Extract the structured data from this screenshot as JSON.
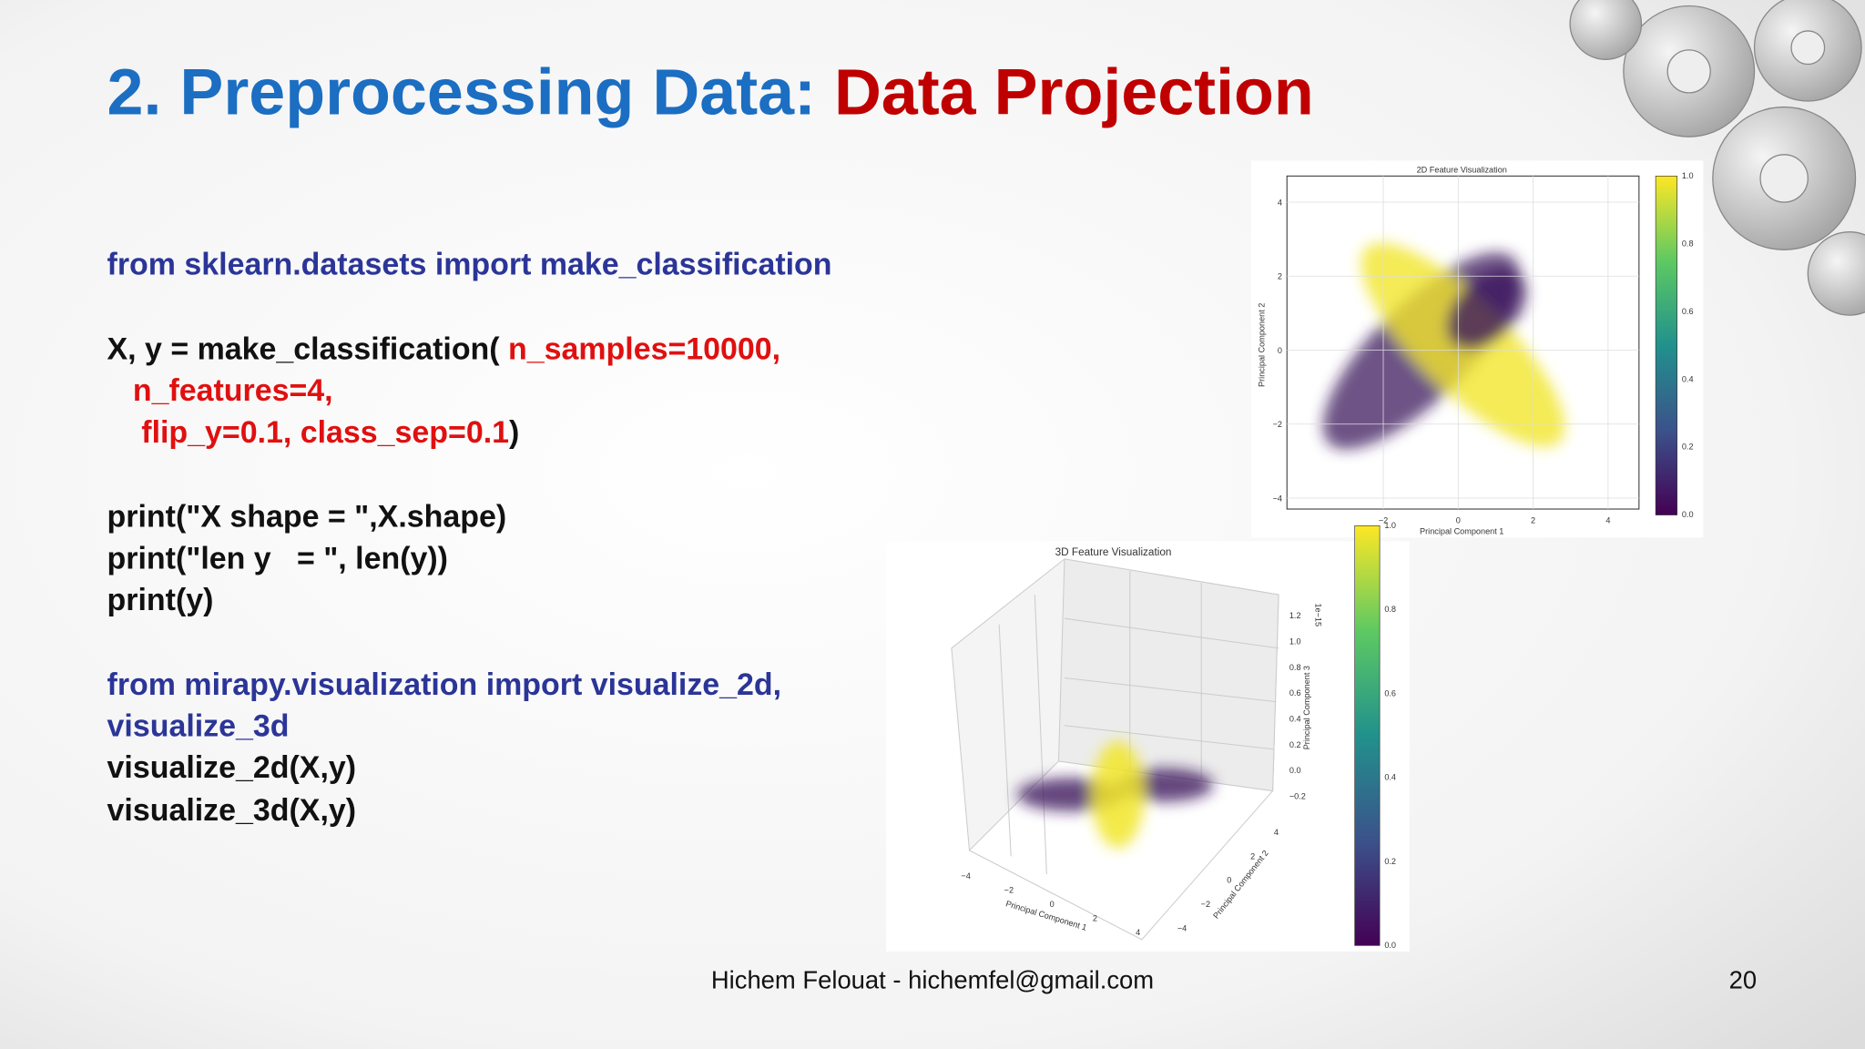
{
  "slide": {
    "title": [
      {
        "text": "2. Preprocessing Data: ",
        "color": "#1b6ec2"
      },
      {
        "text": "Data Projection",
        "color": "#c00000"
      }
    ],
    "code": [
      [
        {
          "text": "from sklearn.datasets import make_classification",
          "color": "#2b3598"
        }
      ],
      [
        {
          "text": "X, y = make_classification( ",
          "color": "#111111"
        },
        {
          "text": "n_samples=10000,",
          "color": "#e01010"
        }
      ],
      [
        {
          "text": "   n_features=4,",
          "color": "#e01010"
        }
      ],
      [
        {
          "text": "    flip_y=0.1, class_sep=0.1",
          "color": "#e01010"
        },
        {
          "text": ")",
          "color": "#111111"
        }
      ],
      [
        {
          "text": "print(\"X shape = \",X.shape)",
          "color": "#111111"
        }
      ],
      [
        {
          "text": "print(\"len y   = \", len(y))",
          "color": "#111111"
        }
      ],
      [
        {
          "text": "print(y)",
          "color": "#111111"
        }
      ],
      [
        {
          "text": "from mirapy.visualization import visualize_2d,",
          "color": "#2b3598"
        }
      ],
      [
        {
          "text": "visualize_3d",
          "color": "#2b3598"
        }
      ],
      [
        {
          "text": "visualize_2d(X,y)",
          "color": "#111111"
        }
      ],
      [
        {
          "text": "visualize_3d(X,y)",
          "color": "#111111"
        }
      ]
    ],
    "footer": "Hichem Felouat - hichemfel@gmail.com",
    "page_number": "20",
    "figure_2d": {
      "title": "2D Feature Visualization",
      "xlabel": "Principal Component 1",
      "ylabel": "Principal Component 2",
      "xticks": [
        "−2",
        "0",
        "2",
        "4"
      ],
      "yticks": [
        "4",
        "2",
        "0",
        "−2",
        "−4"
      ],
      "colorbar_ticks": [
        "1.0",
        "0.8",
        "0.6",
        "0.4",
        "0.2",
        "0.0"
      ]
    },
    "figure_3d": {
      "title": "3D Feature Visualization",
      "xlabel": "Principal Component 1",
      "ylabel": "Principal Component 2",
      "zlabel": "Principal Component 3",
      "z_offset": "1e−15",
      "xticks": [
        "−4",
        "−2",
        "0",
        "2",
        "4"
      ],
      "yticks": [
        "4",
        "2",
        "0",
        "−2",
        "−4"
      ],
      "zticks": [
        "1.2",
        "1.0",
        "0.8",
        "0.6",
        "0.4",
        "0.2",
        "0.0",
        "−0.2"
      ],
      "colorbar_ticks": [
        "1.0",
        "0.8",
        "0.6",
        "0.4",
        "0.2",
        "0.0"
      ]
    }
  }
}
